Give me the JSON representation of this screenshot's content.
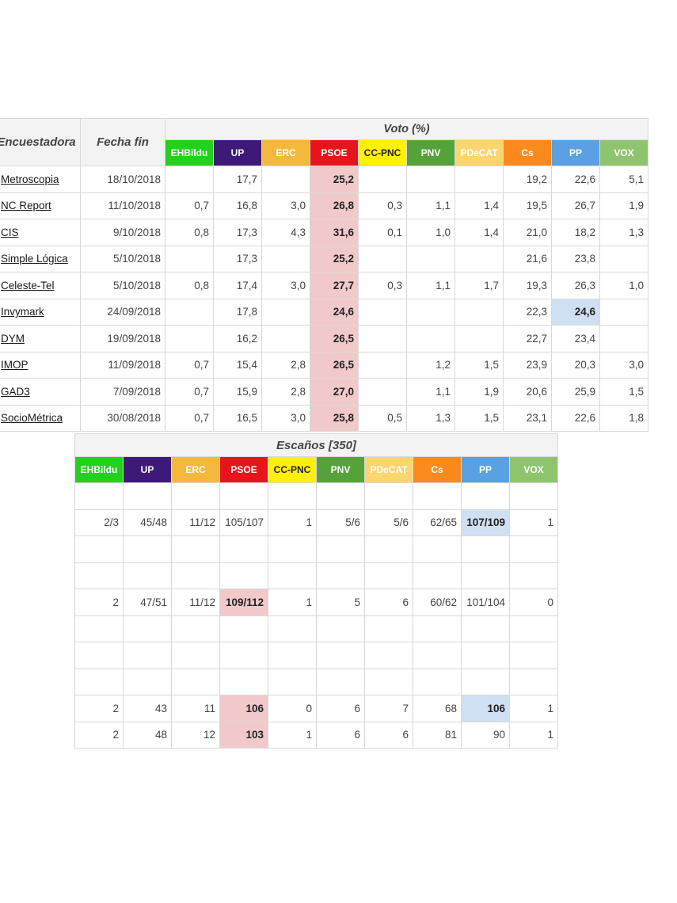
{
  "voto_table": {
    "header_pollster": "Encuestadora",
    "header_date": "Fecha fin",
    "group_title": "Voto (%)",
    "parties": [
      {
        "label": "EHBildu",
        "bg": "#22d11c",
        "fg": "#ffffff"
      },
      {
        "label": "UP",
        "bg": "#3d1a78",
        "fg": "#ffffff"
      },
      {
        "label": "ERC",
        "bg": "#f4b93c",
        "fg": "#ffffff"
      },
      {
        "label": "PSOE",
        "bg": "#e8141c",
        "fg": "#ffffff"
      },
      {
        "label": "CC-PNC",
        "bg": "#fff200",
        "fg": "#222222"
      },
      {
        "label": "PNV",
        "bg": "#56a23a",
        "fg": "#ffffff"
      },
      {
        "label": "PDeCAT",
        "bg": "#fbd56e",
        "fg": "#ffffff"
      },
      {
        "label": "Cs",
        "bg": "#fb8a1e",
        "fg": "#ffffff"
      },
      {
        "label": "PP",
        "bg": "#5aa0e2",
        "fg": "#ffffff"
      },
      {
        "label": "VOX",
        "bg": "#8fc46f",
        "fg": "#ffffff"
      }
    ],
    "rows": [
      {
        "pollster": "Metroscopia",
        "date": "18/10/2018",
        "values": [
          "",
          "17,7",
          "",
          "25,2",
          "",
          "",
          "",
          "19,2",
          "22,6",
          "5,1"
        ]
      },
      {
        "pollster": "NC Report",
        "date": "11/10/2018",
        "values": [
          "0,7",
          "16,8",
          "3,0",
          "26,8",
          "0,3",
          "1,1",
          "1,4",
          "19,5",
          "26,7",
          "1,9"
        ]
      },
      {
        "pollster": "CIS",
        "date": "9/10/2018",
        "values": [
          "0,8",
          "17,3",
          "4,3",
          "31,6",
          "0,1",
          "1,0",
          "1,4",
          "21,0",
          "18,2",
          "1,3"
        ]
      },
      {
        "pollster": "Simple Lógica",
        "date": "5/10/2018",
        "values": [
          "",
          "17,3",
          "",
          "25,2",
          "",
          "",
          "",
          "21,6",
          "23,8",
          ""
        ]
      },
      {
        "pollster": "Celeste-Tel",
        "date": "5/10/2018",
        "values": [
          "0,8",
          "17,4",
          "3,0",
          "27,7",
          "0,3",
          "1,1",
          "1,7",
          "19,3",
          "26,3",
          "1,0"
        ]
      },
      {
        "pollster": "Invymark",
        "date": "24/09/2018",
        "values": [
          "",
          "17,8",
          "",
          "24,6",
          "",
          "",
          "",
          "22,3",
          "24,6",
          ""
        ]
      },
      {
        "pollster": "DYM",
        "date": "19/09/2018",
        "values": [
          "",
          "16,2",
          "",
          "26,5",
          "",
          "",
          "",
          "22,7",
          "23,4",
          ""
        ]
      },
      {
        "pollster": "IMOP",
        "date": "11/09/2018",
        "values": [
          "0,7",
          "15,4",
          "2,8",
          "26,5",
          "",
          "1,2",
          "1,5",
          "23,9",
          "20,3",
          "3,0"
        ]
      },
      {
        "pollster": "GAD3",
        "date": "7/09/2018",
        "values": [
          "0,7",
          "15,9",
          "2,8",
          "27,0",
          "",
          "1,1",
          "1,9",
          "20,6",
          "25,9",
          "1,5"
        ]
      },
      {
        "pollster": "SocioMétrica",
        "date": "30/08/2018",
        "values": [
          "0,7",
          "16,5",
          "3,0",
          "25,8",
          "0,5",
          "1,3",
          "1,5",
          "23,1",
          "22,6",
          "1,8"
        ]
      }
    ]
  },
  "escanos_table": {
    "group_title": "Escaños [350]",
    "rows": [
      [
        "",
        "",
        "",
        "",
        "",
        "",
        "",
        "",
        "",
        ""
      ],
      [
        "2/3",
        "45/48",
        "11/12",
        "105/107",
        "1",
        "5/6",
        "5/6",
        "62/65",
        "107/109",
        "1"
      ],
      [
        "",
        "",
        "",
        "",
        "",
        "",
        "",
        "",
        "",
        ""
      ],
      [
        "",
        "",
        "",
        "",
        "",
        "",
        "",
        "",
        "",
        ""
      ],
      [
        "2",
        "47/51",
        "11/12",
        "109/112",
        "1",
        "5",
        "6",
        "60/62",
        "101/104",
        "0"
      ],
      [
        "",
        "",
        "",
        "",
        "",
        "",
        "",
        "",
        "",
        ""
      ],
      [
        "",
        "",
        "",
        "",
        "",
        "",
        "",
        "",
        "",
        ""
      ],
      [
        "",
        "",
        "",
        "",
        "",
        "",
        "",
        "",
        "",
        ""
      ],
      [
        "2",
        "43",
        "11",
        "106",
        "0",
        "6",
        "7",
        "68",
        "106",
        "1"
      ],
      [
        "2",
        "48",
        "12",
        "103",
        "1",
        "6",
        "6",
        "81",
        "90",
        "1"
      ]
    ]
  }
}
